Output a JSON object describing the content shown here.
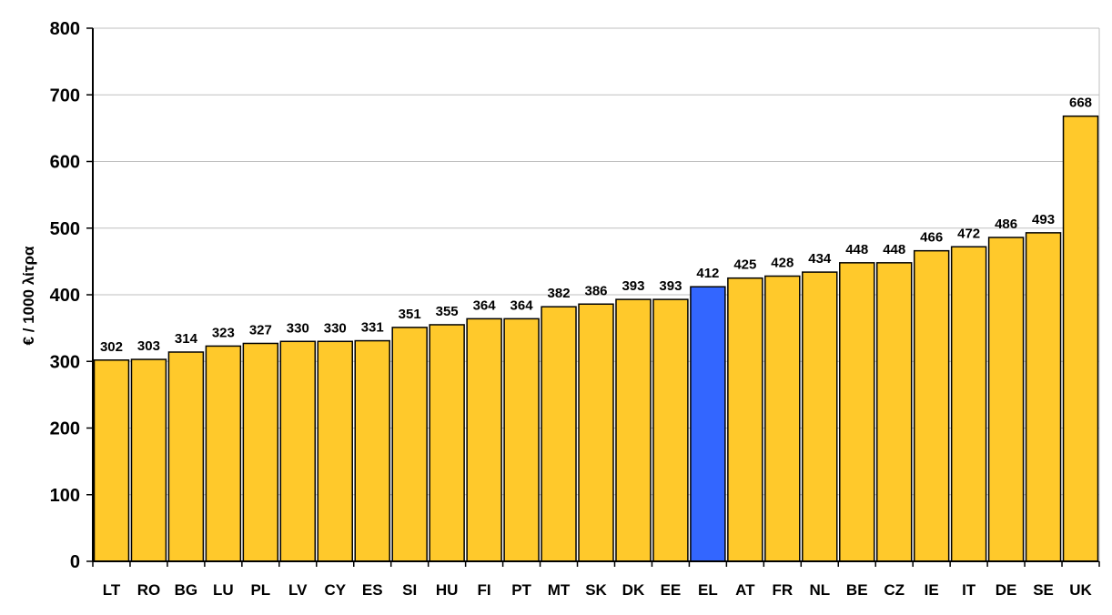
{
  "chart_data": {
    "type": "bar",
    "title": "",
    "xlabel": "",
    "ylabel": "€ / 1000 λίτρα",
    "ylim": [
      0,
      800
    ],
    "yticks": [
      0,
      100,
      200,
      300,
      400,
      500,
      600,
      700,
      800
    ],
    "grid": true,
    "categories": [
      "LT",
      "RO",
      "BG",
      "LU",
      "PL",
      "LV",
      "CY",
      "ES",
      "SI",
      "HU",
      "FI",
      "PT",
      "MT",
      "SK",
      "DK",
      "EE",
      "EL",
      "AT",
      "FR",
      "NL",
      "BE",
      "CZ",
      "IE",
      "IT",
      "DE",
      "SE",
      "UK"
    ],
    "values": [
      302,
      303,
      314,
      323,
      327,
      330,
      330,
      331,
      351,
      355,
      364,
      364,
      382,
      386,
      393,
      393,
      412,
      425,
      428,
      434,
      448,
      448,
      466,
      472,
      486,
      493,
      668
    ],
    "colors": {
      "default_bar": "#FFC92B",
      "highlight_bar": "#3366FF",
      "highlight_category": "EL",
      "gridline": "#BFBFBF",
      "axis": "#000000"
    }
  }
}
